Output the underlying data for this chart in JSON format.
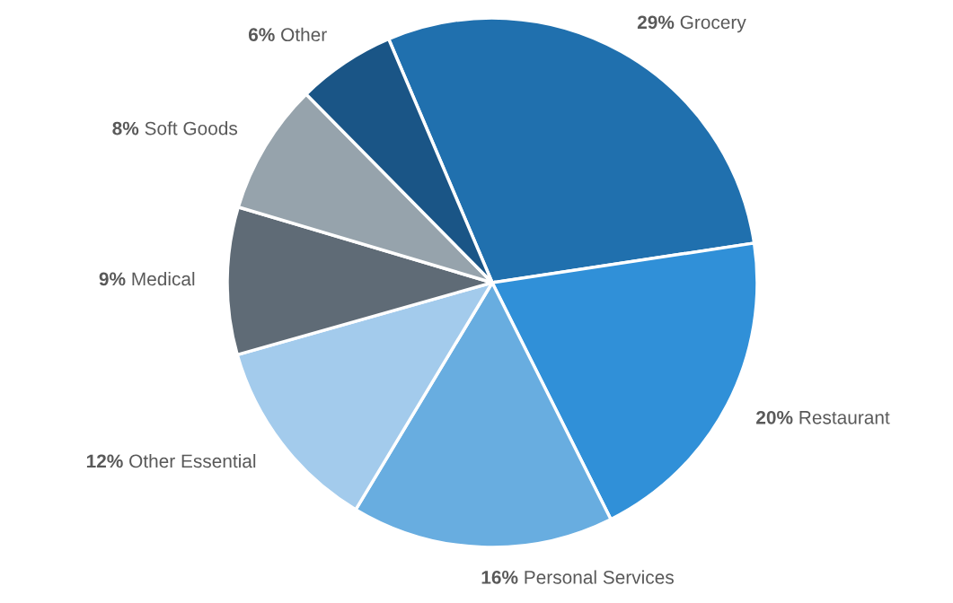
{
  "chart_data": {
    "type": "pie",
    "categories": [
      "Grocery",
      "Restaurant",
      "Personal Services",
      "Other Essential",
      "Medical",
      "Soft Goods",
      "Other"
    ],
    "values": [
      29,
      20,
      16,
      12,
      9,
      8,
      6
    ],
    "value_labels": [
      "29%",
      "20%",
      "16%",
      "12%",
      "9%",
      "8%",
      "6%"
    ],
    "colors": [
      "#2070ae",
      "#3090d8",
      "#68ade0",
      "#a3cbec",
      "#5f6b76",
      "#96a3ac",
      "#1a5586"
    ]
  }
}
